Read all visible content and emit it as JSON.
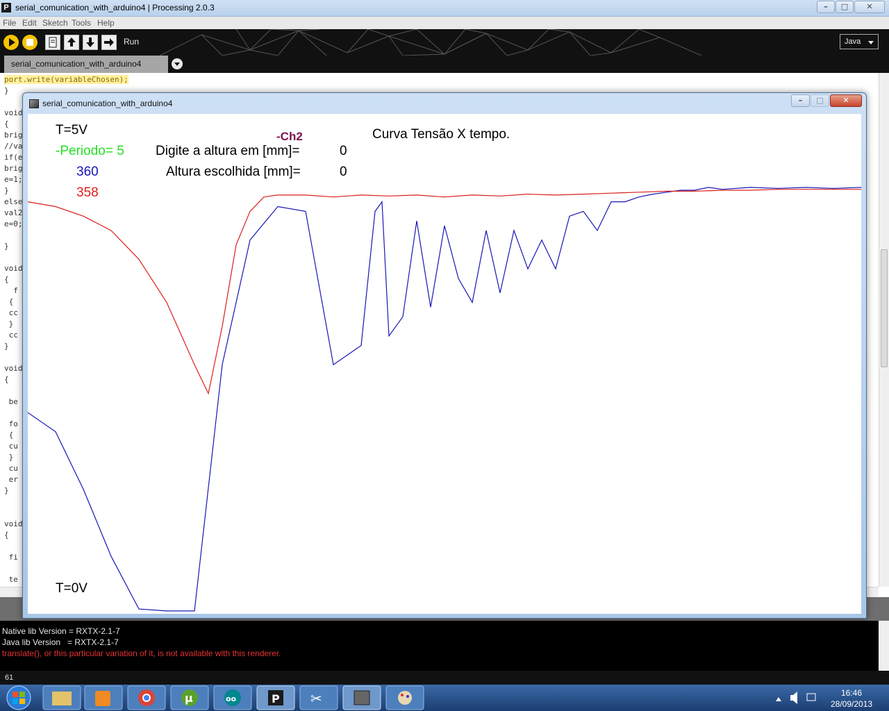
{
  "ide": {
    "title": "serial_comunication_with_arduino4 | Processing 2.0.3",
    "app_icon": "P",
    "window_controls": {
      "min": "–",
      "max": "□",
      "close": "✕"
    },
    "menu": [
      "File",
      "Edit",
      "Sketch",
      "Tools",
      "Help"
    ],
    "toolbar": {
      "run_label": "Run",
      "icons": [
        "play-icon",
        "stop-icon",
        "new-sketch-icon",
        "open-icon",
        "save-icon",
        "export-icon"
      ],
      "mode": "Java"
    },
    "tab": {
      "label": "serial_comunication_with_arduino4"
    }
  },
  "editor": {
    "lines": [
      "port.write(variableChosen);",
      "}",
      "",
      "void",
      "{",
      "brig",
      "//va",
      "if(e",
      "brig",
      "e=1;",
      "}",
      "else",
      "val2",
      "e=0;",
      "",
      "}",
      "",
      "void",
      "{",
      "  f",
      " {",
      " cc",
      " }",
      " cc",
      "}",
      "",
      "void",
      "{",
      "",
      " be",
      "",
      " fo",
      " {",
      " cu",
      " }",
      " cu",
      " er",
      "}",
      "",
      "",
      "void",
      "{",
      "",
      " fi",
      "",
      " te"
    ],
    "highlight_line": 0
  },
  "console": {
    "lines": [
      {
        "text": "Native lib Version = RXTX-2.1-7",
        "color": "#e6e6e6"
      },
      {
        "text": "Java lib Version   = RXTX-2.1-7",
        "color": "#e6e6e6"
      },
      {
        "text": "translate(), or this particular variation of it, is not available with this renderer.",
        "color": "#e83232"
      }
    ],
    "line_number": "61"
  },
  "sketch": {
    "title": "serial_comunication_with_arduino4",
    "labels": {
      "top_voltage": "T=5V",
      "periodo": "-Periodo= 5",
      "ch_label": "-Ch2",
      "chart_title": "Curva Tensão X tempo.",
      "digite_label": "Digite a altura em [mm]=",
      "digite_value": "0",
      "altura_label": "Altura escolhida [mm]=",
      "altura_value": "0",
      "blue_value": "360",
      "red_value": "358",
      "bottom_voltage": "T=0V"
    },
    "colors": {
      "blue": "#1616b4",
      "red": "#dc1e1e",
      "green": "#22e022",
      "ch_purple": "#7a1450"
    }
  },
  "chart_data": {
    "type": "line",
    "title": "Curva Tensão X tempo.",
    "ylim": [
      0,
      5
    ],
    "y_unit": "V",
    "series": [
      {
        "color": "#1616b4",
        "x": [
          0,
          40,
          80,
          120,
          160,
          200,
          240,
          280,
          320,
          360,
          400,
          440,
          480,
          500,
          510,
          520,
          540,
          560,
          580,
          600,
          620,
          640,
          660,
          680,
          700,
          720,
          740,
          760,
          780,
          800,
          820,
          840,
          860,
          880,
          900,
          920,
          940,
          960,
          980,
          1000,
          1040,
          1080,
          1120,
          1160,
          1200
        ],
        "y": [
          2.1,
          1.9,
          1.3,
          0.6,
          0.05,
          0.03,
          0.03,
          2.6,
          3.9,
          4.25,
          4.2,
          2.6,
          2.8,
          4.2,
          4.3,
          2.9,
          3.1,
          4.1,
          3.2,
          4.05,
          3.5,
          3.25,
          4.0,
          3.35,
          4.0,
          3.6,
          3.9,
          3.6,
          4.15,
          4.2,
          4.0,
          4.3,
          4.3,
          4.35,
          4.38,
          4.4,
          4.42,
          4.42,
          4.45,
          4.43,
          4.45,
          4.44,
          4.45,
          4.44,
          4.45
        ]
      },
      {
        "color": "#dc1e1e",
        "x": [
          0,
          40,
          80,
          120,
          160,
          200,
          240,
          260,
          280,
          300,
          320,
          340,
          360,
          400,
          440,
          480,
          520,
          560,
          600,
          640,
          680,
          720,
          760,
          800,
          840,
          880,
          920,
          960,
          1000,
          1040,
          1080,
          1120,
          1160,
          1200
        ],
        "y": [
          4.3,
          4.25,
          4.15,
          4.0,
          3.7,
          3.25,
          2.6,
          2.3,
          3.0,
          3.85,
          4.2,
          4.35,
          4.37,
          4.37,
          4.35,
          4.37,
          4.36,
          4.37,
          4.35,
          4.37,
          4.36,
          4.38,
          4.37,
          4.38,
          4.39,
          4.4,
          4.41,
          4.41,
          4.42,
          4.42,
          4.43,
          4.43,
          4.43,
          4.43
        ]
      }
    ]
  }
}
